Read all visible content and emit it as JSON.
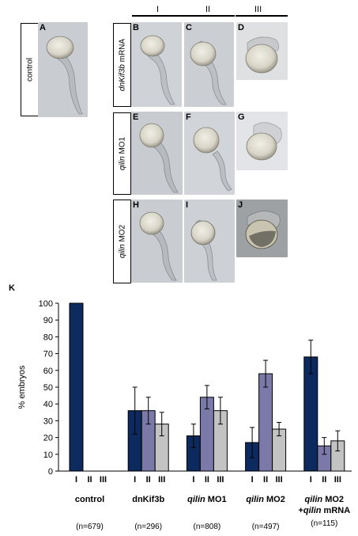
{
  "figure": {
    "panel_letters": [
      "A",
      "B",
      "C",
      "D",
      "E",
      "F",
      "G",
      "H",
      "I",
      "J"
    ],
    "row_labels": {
      "control": "control",
      "dnkif3b_italic": "dnKif3b",
      "dnkif3b_rest": " mRNA",
      "qilin1_italic": "qilin",
      "qilin1_rest": " MO1",
      "qilin2_italic": "qilin",
      "qilin2_rest": " MO2"
    },
    "column_headers": [
      "I",
      "II",
      "III"
    ],
    "chart_letter": "K"
  },
  "chart_data": {
    "type": "bar",
    "ylabel": "% embryos",
    "ylim": [
      0,
      100
    ],
    "yticks": [
      0,
      10,
      20,
      30,
      40,
      50,
      60,
      70,
      80,
      90,
      100
    ],
    "groups": [
      {
        "name": "control",
        "n": "(n=679)",
        "values": [
          100,
          0,
          0
        ],
        "errors": [
          0,
          0,
          0
        ]
      },
      {
        "name": "dnKif3b",
        "n": "(n=296)",
        "values": [
          36,
          36,
          28
        ],
        "errors": [
          14,
          8,
          7
        ]
      },
      {
        "name_italic": "qilin",
        "name_rest": " MO1",
        "n": "(n=808)",
        "values": [
          21,
          44,
          36
        ],
        "errors": [
          7,
          7,
          8
        ]
      },
      {
        "name_italic": "qilin",
        "name_rest": " MO2",
        "n": "(n=497)",
        "values": [
          17,
          58,
          25
        ],
        "errors": [
          9,
          8,
          4
        ]
      },
      {
        "name_italic": "qilin",
        "name_rest": " MO2",
        "name_line2_prefix": "+",
        "name_line2_italic": "qilin",
        "name_line2_rest": " mRNA",
        "n": "(n=115)",
        "values": [
          68,
          15,
          18
        ],
        "errors": [
          10,
          5,
          6
        ]
      }
    ],
    "bar_labels": [
      "I",
      "II",
      "III"
    ],
    "colors": {
      "I": "#0d2a5e",
      "II": "#7b79a8",
      "III": "#c3c3c3"
    }
  }
}
